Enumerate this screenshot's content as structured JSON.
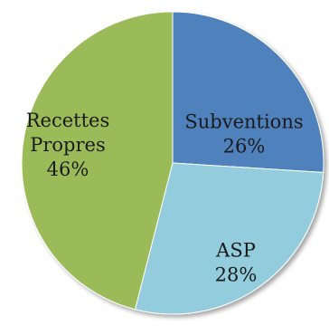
{
  "chart_data": {
    "type": "pie",
    "title": "",
    "slices": [
      {
        "label": [
          "Subventions"
        ],
        "percent_label": "26%",
        "value": 26,
        "color": "#4f81bd"
      },
      {
        "label": [
          "ASP"
        ],
        "percent_label": "28%",
        "value": 28,
        "color": "#93cddd"
      },
      {
        "label": [
          "Recettes",
          "Propres"
        ],
        "percent_label": "46%",
        "value": 46,
        "color": "#9bbb59"
      }
    ],
    "start_angle_deg": 0,
    "direction": "clockwise",
    "legend": "none"
  }
}
